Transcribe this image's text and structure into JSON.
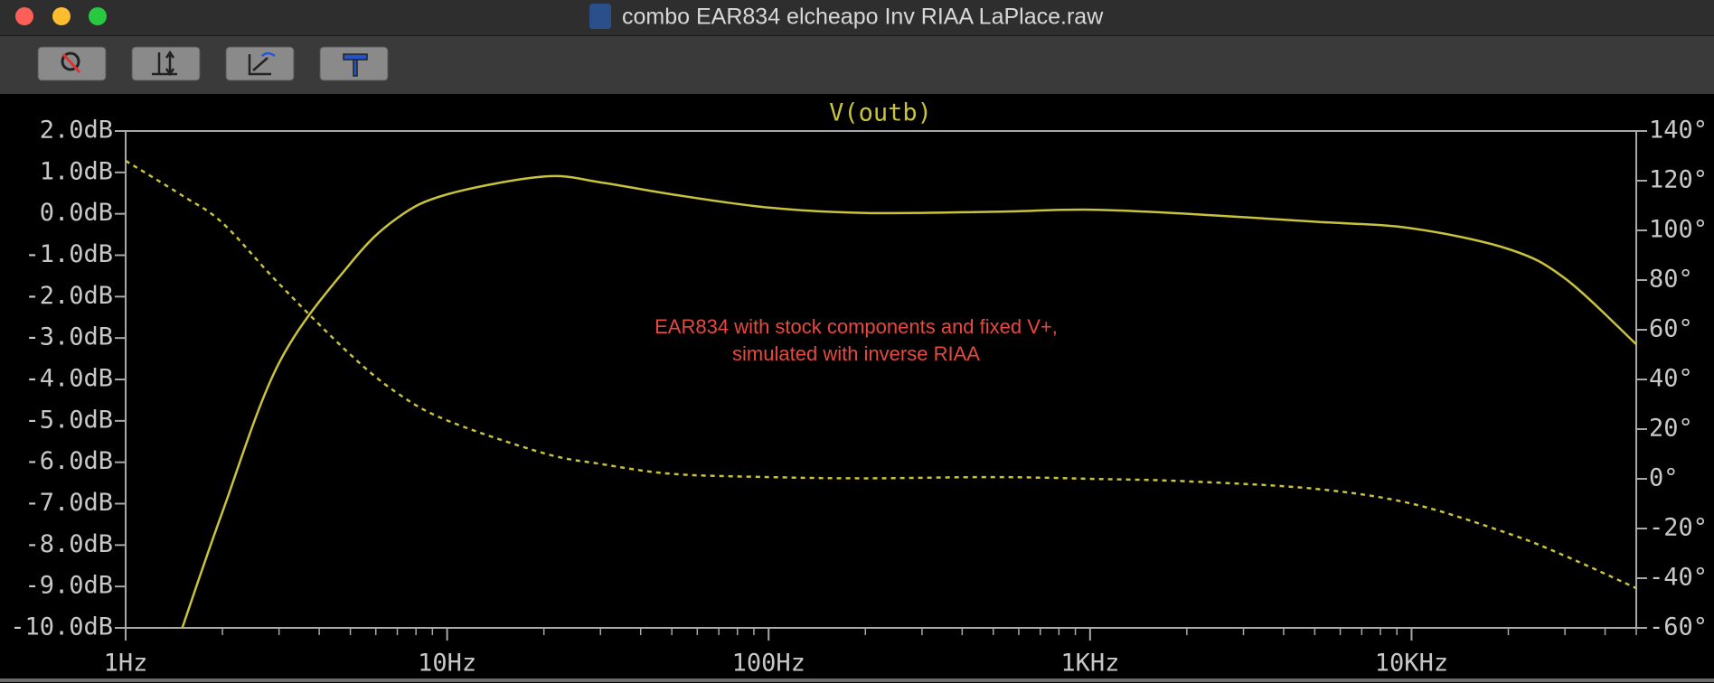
{
  "window": {
    "title": "combo EAR834 elcheapo Inv RIAA LaPlace.raw"
  },
  "chart_data": {
    "type": "line",
    "title": "V(outb)",
    "annotation": [
      "EAR834 with stock components and fixed V+,",
      "simulated with inverse RIAA"
    ],
    "xscale": "log",
    "x": [
      1,
      1.5,
      2,
      3,
      5,
      7,
      10,
      20,
      30,
      50,
      100,
      200,
      500,
      1000,
      2000,
      5000,
      10000,
      20000,
      30000,
      50000
    ],
    "xlim": [
      1,
      50000
    ],
    "xticks": [
      {
        "value": 1,
        "label": "1Hz"
      },
      {
        "value": 10,
        "label": "10Hz"
      },
      {
        "value": 100,
        "label": "100Hz"
      },
      {
        "value": 1000,
        "label": "1KHz"
      },
      {
        "value": 10000,
        "label": "10KHz"
      }
    ],
    "ylim": [
      -10,
      2
    ],
    "yticks": [
      {
        "value": 2,
        "label": "2.0dB"
      },
      {
        "value": 1,
        "label": "1.0dB"
      },
      {
        "value": 0,
        "label": "0.0dB"
      },
      {
        "value": -1,
        "label": "-1.0dB"
      },
      {
        "value": -2,
        "label": "-2.0dB"
      },
      {
        "value": -3,
        "label": "-3.0dB"
      },
      {
        "value": -4,
        "label": "-4.0dB"
      },
      {
        "value": -5,
        "label": "-5.0dB"
      },
      {
        "value": -6,
        "label": "-6.0dB"
      },
      {
        "value": -7,
        "label": "-7.0dB"
      },
      {
        "value": -8,
        "label": "-8.0dB"
      },
      {
        "value": -9,
        "label": "-9.0dB"
      },
      {
        "value": -10,
        "label": "-10.0dB"
      }
    ],
    "y2lim": [
      -60,
      140
    ],
    "y2ticks": [
      {
        "value": 140,
        "label": "140°"
      },
      {
        "value": 120,
        "label": "120°"
      },
      {
        "value": 100,
        "label": "100°"
      },
      {
        "value": 80,
        "label": "80°"
      },
      {
        "value": 60,
        "label": "60°"
      },
      {
        "value": 40,
        "label": "40°"
      },
      {
        "value": 20,
        "label": "20°"
      },
      {
        "value": 0,
        "label": "0°"
      },
      {
        "value": -20,
        "label": "-20°"
      },
      {
        "value": -40,
        "label": "-40°"
      },
      {
        "value": -60,
        "label": "-60°"
      }
    ],
    "series": [
      {
        "color": "#c9c23c",
        "values": [
          null,
          -10,
          -7.2,
          -3.6,
          -1.2,
          -0.1,
          0.47,
          0.9,
          0.76,
          0.47,
          0.15,
          0.02,
          0.05,
          0.1,
          0,
          -0.19,
          -0.35,
          -0.85,
          -1.56,
          -3.15
        ]
      },
      {
        "color": "#c9c23c",
        "axis": "y2",
        "dashed": true,
        "values": [
          128,
          114,
          103,
          78.5,
          50,
          34.5,
          23.5,
          10.3,
          6,
          2,
          0.7,
          0.2,
          0.7,
          0,
          -1,
          -4,
          -10,
          -22,
          -31,
          -44
        ]
      }
    ]
  }
}
